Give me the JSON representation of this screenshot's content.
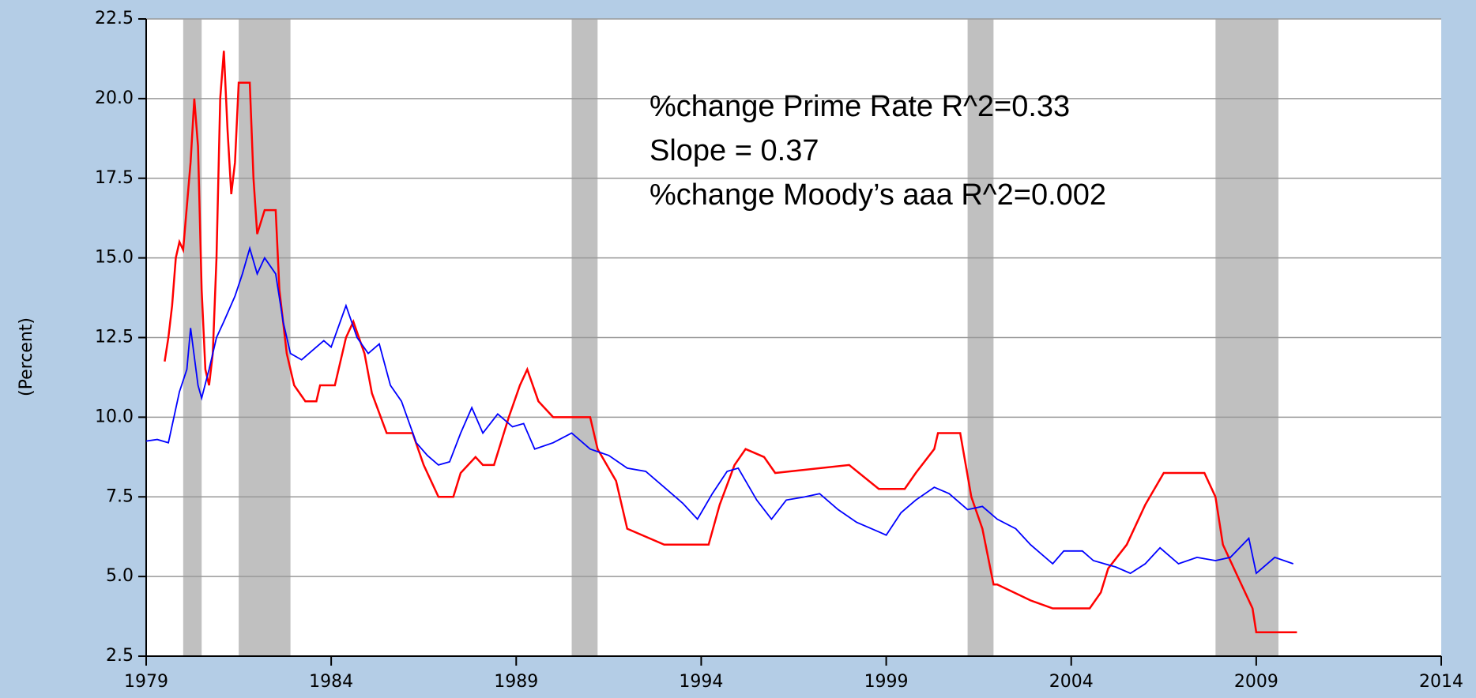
{
  "chart_data": {
    "type": "line",
    "y_label": "(Percent)",
    "annotations": [
      "%change  Prime Rate R^2=0.33",
      "Slope = 0.37",
      "%change Moody’s aaa  R^2=0.002"
    ],
    "xlim": [
      1979,
      2014
    ],
    "xticks": [
      1979,
      1984,
      1989,
      1994,
      1999,
      2004,
      2009,
      2014
    ],
    "ylim": [
      2.5,
      22.5
    ],
    "yticks": [
      2.5,
      {
        "value": 5,
        "label": "5.0"
      },
      7.5,
      {
        "value": 10,
        "label": "10.0"
      },
      12.5,
      {
        "value": 15,
        "label": "15.0"
      },
      17.5,
      {
        "value": 20,
        "label": "20.0"
      },
      22.5
    ],
    "grid": true,
    "recession_color": "#c0c0c0",
    "recessions": [
      [
        1980.0,
        1980.5
      ],
      [
        1981.5,
        1982.9
      ],
      [
        1990.5,
        1991.2
      ],
      [
        2001.2,
        2001.9
      ],
      [
        2007.9,
        2009.6
      ]
    ],
    "series": [
      {
        "color": "#ff0000",
        "x": [
          1979.5,
          1979.6,
          1979.7,
          1979.8,
          1979.9,
          1980.0,
          1980.2,
          1980.3,
          1980.4,
          1980.5,
          1980.6,
          1980.7,
          1980.8,
          1980.9,
          1981.0,
          1981.1,
          1981.2,
          1981.3,
          1981.4,
          1981.5,
          1981.8,
          1981.9,
          1982.0,
          1982.2,
          1982.5,
          1982.6,
          1982.8,
          1983.0,
          1983.3,
          1983.6,
          1983.7,
          1984.1,
          1984.4,
          1984.6,
          1984.9,
          1985.1,
          1985.5,
          1986.2,
          1986.5,
          1986.9,
          1987.3,
          1987.5,
          1987.9,
          1988.1,
          1988.4,
          1988.8,
          1989.1,
          1989.3,
          1989.6,
          1990.0,
          1991.0,
          1991.2,
          1991.7,
          1992.0,
          1993.0,
          1994.2,
          1994.5,
          1994.9,
          1995.2,
          1995.7,
          1996.0,
          1998.0,
          1998.8,
          1999.5,
          1999.8,
          2000.3,
          2000.4,
          2001.0,
          2001.3,
          2001.6,
          2001.9,
          2002.0,
          2002.9,
          2003.5,
          2004.5,
          2004.8,
          2005.0,
          2005.5,
          2006.0,
          2006.5,
          2007.6,
          2007.9,
          2008.1,
          2008.5,
          2008.9,
          2009.0,
          2010.1
        ],
        "values": [
          11.75,
          12.5,
          13.5,
          15,
          15.5,
          15.25,
          18,
          20,
          18.5,
          14,
          11.5,
          11,
          12,
          15,
          20,
          21.5,
          19,
          17,
          18,
          20.5,
          20.5,
          17.5,
          15.75,
          16.5,
          16.5,
          14,
          12,
          11,
          10.5,
          10.5,
          11,
          11,
          12.5,
          13,
          12,
          10.75,
          9.5,
          9.5,
          8.5,
          7.5,
          7.5,
          8.25,
          8.75,
          8.5,
          8.5,
          10,
          11,
          11.5,
          10.5,
          10,
          10,
          9,
          8,
          6.5,
          6,
          6,
          7.25,
          8.5,
          9,
          8.75,
          8.25,
          8.5,
          7.75,
          7.75,
          8.25,
          9,
          9.5,
          9.5,
          7.5,
          6.5,
          4.75,
          4.75,
          4.25,
          4,
          4,
          4.5,
          5.25,
          6,
          7.25,
          8.25,
          8.25,
          7.5,
          6,
          5,
          4,
          3.25,
          3.25
        ]
      },
      {
        "color": "#0000ff",
        "x": [
          1979.0,
          1979.3,
          1979.6,
          1979.9,
          1980.1,
          1980.2,
          1980.4,
          1980.5,
          1980.7,
          1980.9,
          1981.1,
          1981.4,
          1981.6,
          1981.8,
          1982.0,
          1982.2,
          1982.5,
          1982.7,
          1982.9,
          1983.2,
          1983.5,
          1983.8,
          1984.0,
          1984.4,
          1984.7,
          1985.0,
          1985.3,
          1985.6,
          1985.9,
          1986.3,
          1986.6,
          1986.9,
          1987.2,
          1987.5,
          1987.8,
          1988.1,
          1988.5,
          1988.9,
          1989.2,
          1989.5,
          1990.0,
          1990.5,
          1991.0,
          1991.5,
          1992.0,
          1992.5,
          1993.0,
          1993.5,
          1993.9,
          1994.3,
          1994.7,
          1995.0,
          1995.5,
          1995.9,
          1996.3,
          1996.8,
          1997.2,
          1997.7,
          1998.2,
          1998.8,
          1999.0,
          1999.4,
          1999.8,
          2000.3,
          2000.7,
          2001.2,
          2001.6,
          2002.0,
          2002.5,
          2002.9,
          2003.5,
          2003.8,
          2004.3,
          2004.6,
          2005.2,
          2005.6,
          2006.0,
          2006.4,
          2006.9,
          2007.4,
          2007.9,
          2008.3,
          2008.8,
          2009.0,
          2009.5,
          2010.0
        ],
        "values": [
          9.25,
          9.3,
          9.2,
          10.8,
          11.5,
          12.8,
          11,
          10.6,
          11.5,
          12.5,
          13,
          13.8,
          14.5,
          15.3,
          14.5,
          15,
          14.5,
          13,
          12,
          11.8,
          12.1,
          12.4,
          12.2,
          13.5,
          12.5,
          12,
          12.3,
          11,
          10.5,
          9.2,
          8.8,
          8.5,
          8.6,
          9.5,
          10.3,
          9.5,
          10.1,
          9.7,
          9.8,
          9,
          9.2,
          9.5,
          9,
          8.8,
          8.4,
          8.3,
          7.8,
          7.3,
          6.8,
          7.6,
          8.3,
          8.4,
          7.4,
          6.8,
          7.4,
          7.5,
          7.6,
          7.1,
          6.7,
          6.4,
          6.3,
          7,
          7.4,
          7.8,
          7.6,
          7.1,
          7.2,
          6.8,
          6.5,
          6,
          5.4,
          5.8,
          5.8,
          5.5,
          5.3,
          5.1,
          5.4,
          5.9,
          5.4,
          5.6,
          5.5,
          5.6,
          6.2,
          5.1,
          5.6,
          5.4
        ]
      }
    ]
  }
}
